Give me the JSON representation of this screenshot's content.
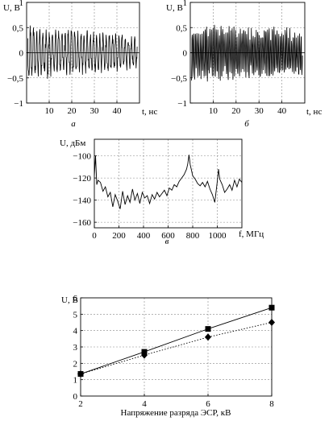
{
  "chart_data": [
    {
      "id": "a",
      "type": "line",
      "caption": "а",
      "ylabel": "U, В",
      "xlabel": "t, нс",
      "xlim": [
        0,
        50
      ],
      "ylim": [
        -1,
        1
      ],
      "xticks": [
        10,
        20,
        30,
        40
      ],
      "yticks": [
        -1,
        -0.5,
        0,
        0.5,
        1
      ],
      "ytick_labels": [
        "−1",
        "−0,5",
        "0",
        "0,5",
        "1"
      ],
      "grid": true,
      "signal": {
        "start": 0.5,
        "end": 49,
        "period": 1.4,
        "peak": 0.58,
        "decay_to": 0.35
      }
    },
    {
      "id": "b",
      "type": "line",
      "caption": "б",
      "ylabel": "U, В",
      "xlabel": "t, нс",
      "xlim": [
        0,
        50
      ],
      "ylim": [
        -1,
        1
      ],
      "xticks": [
        10,
        20,
        30,
        40
      ],
      "yticks": [
        -1,
        -0.5,
        0,
        0.5,
        1
      ],
      "ytick_labels": [
        "−1",
        "−0,5",
        "0",
        "0,5",
        "1"
      ],
      "grid": true,
      "signal": {
        "start": 0.5,
        "end": 49,
        "period": 0.7,
        "peak": 0.6,
        "decay_to": 0.5
      }
    },
    {
      "id": "c",
      "type": "line",
      "caption": "в",
      "ylabel": "U, дБм",
      "xlabel": "f, МГц",
      "xlim": [
        0,
        1200
      ],
      "ylim": [
        -165,
        -85
      ],
      "xticks": [
        0,
        200,
        400,
        600,
        800,
        1000
      ],
      "yticks": [
        -160,
        -140,
        -120,
        -100
      ],
      "ytick_labels": [
        "−160",
        "−140",
        "−120",
        "−100"
      ],
      "grid": true,
      "x": [
        0,
        10,
        20,
        30,
        50,
        70,
        90,
        110,
        130,
        150,
        170,
        190,
        210,
        230,
        250,
        270,
        290,
        310,
        330,
        350,
        370,
        390,
        410,
        430,
        450,
        470,
        490,
        510,
        530,
        550,
        570,
        590,
        610,
        630,
        650,
        670,
        690,
        710,
        730,
        750,
        760,
        770,
        780,
        790,
        800,
        820,
        840,
        860,
        880,
        900,
        920,
        940,
        960,
        980,
        1000,
        1010,
        1020,
        1040,
        1060,
        1080,
        1100,
        1120,
        1140,
        1160,
        1180,
        1200
      ],
      "y": [
        -118,
        -100,
        -126,
        -122,
        -124,
        -132,
        -128,
        -137,
        -133,
        -146,
        -135,
        -141,
        -148,
        -132,
        -144,
        -136,
        -142,
        -130,
        -140,
        -134,
        -143,
        -133,
        -138,
        -136,
        -143,
        -135,
        -139,
        -133,
        -137,
        -134,
        -131,
        -136,
        -129,
        -131,
        -126,
        -128,
        -123,
        -120,
        -117,
        -112,
        -107,
        -99,
        -108,
        -113,
        -118,
        -121,
        -125,
        -127,
        -124,
        -128,
        -123,
        -130,
        -135,
        -142,
        -123,
        -112,
        -121,
        -126,
        -133,
        -130,
        -126,
        -131,
        -122,
        -128,
        -121,
        -124
      ]
    },
    {
      "id": "d",
      "type": "line",
      "caption": "",
      "ylabel": "U, В",
      "xlabel": "Напряжение разряда ЭСР, кВ",
      "xlim": [
        2,
        8
      ],
      "ylim": [
        0,
        6
      ],
      "xticks": [
        2,
        4,
        6,
        8
      ],
      "yticks": [
        0,
        1,
        2,
        3,
        4,
        5,
        6
      ],
      "ytick_labels": [
        "0",
        "1",
        "2",
        "3",
        "4",
        "5",
        "6"
      ],
      "grid": true,
      "series": [
        {
          "marker": "square",
          "line": "solid",
          "x": [
            2,
            4,
            6,
            8
          ],
          "y": [
            1.35,
            2.7,
            4.1,
            5.4
          ]
        },
        {
          "marker": "diamond",
          "line": "dotted",
          "x": [
            2,
            4,
            6,
            8
          ],
          "y": [
            1.35,
            2.5,
            3.6,
            4.5
          ]
        }
      ]
    }
  ]
}
